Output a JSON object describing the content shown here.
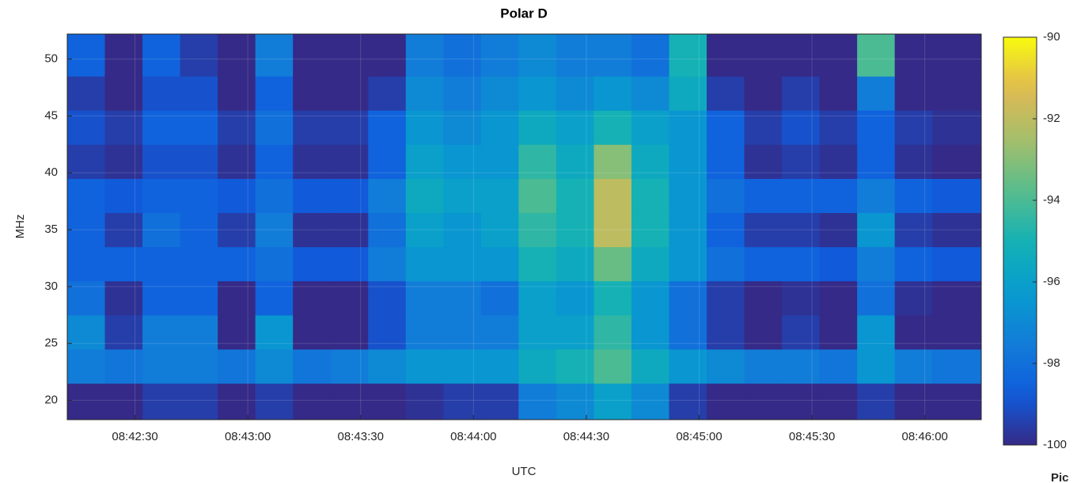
{
  "chart_data": {
    "type": "heatmap",
    "title": "Polar D",
    "xlabel": "UTC",
    "ylabel": "MHz",
    "footer_text": "Pic",
    "colormap": "parula",
    "grid": true,
    "xlim": [
      31332,
      31575
    ],
    "ylim": [
      18.3,
      52.2
    ],
    "clim": [
      -100,
      -90
    ],
    "xticks": [
      {
        "value": 31350,
        "label": "08:42:30"
      },
      {
        "value": 31380,
        "label": "08:43:00"
      },
      {
        "value": 31410,
        "label": "08:43:30"
      },
      {
        "value": 31440,
        "label": "08:44:00"
      },
      {
        "value": 31470,
        "label": "08:44:30"
      },
      {
        "value": 31500,
        "label": "08:45:00"
      },
      {
        "value": 31530,
        "label": "08:45:30"
      },
      {
        "value": 31560,
        "label": "08:46:00"
      }
    ],
    "yticks": [
      20,
      25,
      30,
      35,
      40,
      45,
      50
    ],
    "cticks": [
      -100,
      -98,
      -96,
      -94,
      -92,
      -90
    ],
    "xbins": [
      31332,
      31342,
      31352,
      31362,
      31372,
      31382,
      31392,
      31402,
      31412,
      31422,
      31432,
      31442,
      31452,
      31462,
      31472,
      31482,
      31492,
      31502,
      31512,
      31522,
      31532,
      31542,
      31552,
      31562,
      31575
    ],
    "ybins": [
      18.3,
      21.5,
      24.5,
      27.5,
      30.5,
      33.5,
      36.5,
      39.5,
      42.5,
      45.5,
      48.5,
      52.2
    ],
    "z": [
      [
        -100,
        -100,
        -99.5,
        -99.5,
        -100,
        -99.5,
        -100,
        -100,
        -100,
        -99.8,
        -99.5,
        -99.5,
        -97.5,
        -97,
        -96,
        -97,
        -99.5,
        -100,
        -100,
        -100,
        -100,
        -99.5,
        -100,
        -100
      ],
      [
        -97.5,
        -97.8,
        -97.5,
        -97.5,
        -97.8,
        -97,
        -97.8,
        -97.5,
        -97,
        -96.5,
        -96.5,
        -96.5,
        -95.5,
        -95,
        -94,
        -95.5,
        -96.5,
        -97,
        -97.5,
        -97.5,
        -97.8,
        -96.5,
        -97.5,
        -97.8
      ],
      [
        -97,
        -99.5,
        -97.5,
        -97.5,
        -100,
        -96.5,
        -100,
        -100,
        -99,
        -97.5,
        -97.5,
        -97.5,
        -96,
        -96,
        -94.5,
        -96.5,
        -98,
        -99.5,
        -100,
        -99.5,
        -100,
        -96.5,
        -100,
        -100
      ],
      [
        -98,
        -99.8,
        -98.5,
        -98.5,
        -100,
        -98.5,
        -100,
        -100,
        -99,
        -97.5,
        -97.5,
        -98,
        -96,
        -96.5,
        -95,
        -96.5,
        -98,
        -99.5,
        -100,
        -99.8,
        -100,
        -98,
        -99.8,
        -100
      ],
      [
        -98.5,
        -98.5,
        -98.5,
        -98.5,
        -98.5,
        -98,
        -98.8,
        -98.8,
        -97.5,
        -96.5,
        -96.5,
        -96.5,
        -95,
        -95.5,
        -93.5,
        -95.5,
        -96.5,
        -98,
        -98.5,
        -98.5,
        -98.8,
        -97.5,
        -98.5,
        -98.8
      ],
      [
        -98.5,
        -99.5,
        -98,
        -98.5,
        -99.5,
        -97.5,
        -99.8,
        -99.8,
        -98,
        -96,
        -96.5,
        -96,
        -94.5,
        -95,
        -92,
        -95,
        -96.5,
        -98.5,
        -99.5,
        -99.5,
        -99.8,
        -96.5,
        -99.5,
        -99.8
      ],
      [
        -98.5,
        -98.8,
        -98.5,
        -98.5,
        -98.8,
        -98,
        -98.8,
        -98.8,
        -97.5,
        -95.5,
        -96,
        -96,
        -94,
        -95,
        -92,
        -95,
        -96.5,
        -98,
        -98.5,
        -98.5,
        -98.5,
        -97.5,
        -98.5,
        -98.8
      ],
      [
        -99.5,
        -99.8,
        -99,
        -99,
        -99.8,
        -98.5,
        -99.8,
        -99.8,
        -98.5,
        -96,
        -96.5,
        -96.5,
        -94.5,
        -95.5,
        -93,
        -95.5,
        -96.5,
        -98.5,
        -99.8,
        -99.5,
        -99.8,
        -98.5,
        -99.8,
        -100
      ],
      [
        -99,
        -99.5,
        -98.5,
        -98.5,
        -99.5,
        -98,
        -99.5,
        -99.5,
        -98.5,
        -96.5,
        -97,
        -96.5,
        -95.5,
        -96,
        -95,
        -96,
        -96.5,
        -98.5,
        -99.5,
        -99,
        -99.5,
        -98.5,
        -99.5,
        -99.8
      ],
      [
        -99.5,
        -100,
        -99,
        -99,
        -100,
        -98.5,
        -100,
        -100,
        -99.5,
        -97,
        -97.5,
        -97,
        -96.5,
        -97,
        -96.5,
        -97,
        -95.5,
        -99.5,
        -100,
        -99.5,
        -100,
        -97.5,
        -100,
        -100
      ],
      [
        -98.5,
        -100,
        -98.5,
        -99.5,
        -100,
        -97.5,
        -100,
        -100,
        -100,
        -97.5,
        -98,
        -97.5,
        -97,
        -97.5,
        -97.5,
        -98,
        -95,
        -100,
        -100,
        -100,
        -100,
        -94,
        -100,
        -100
      ]
    ]
  }
}
